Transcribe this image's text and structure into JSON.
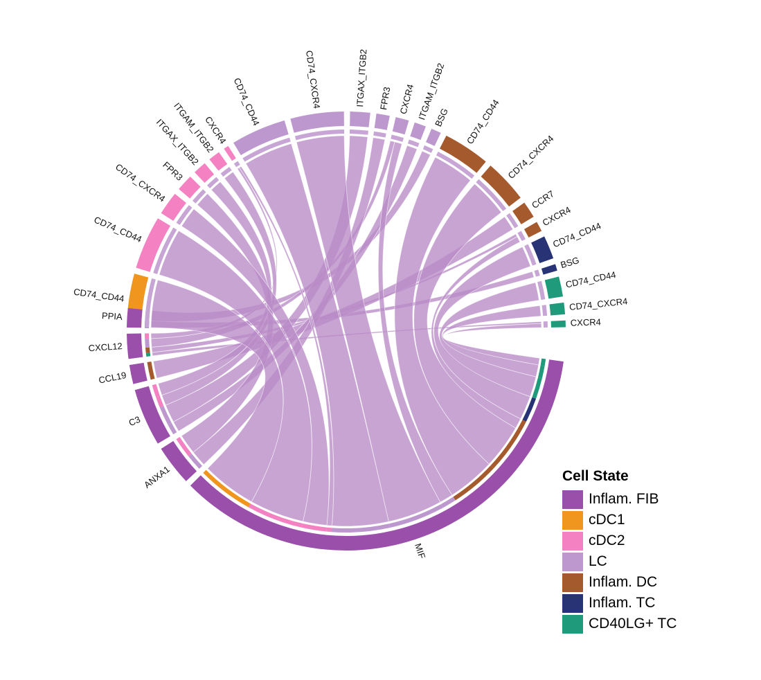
{
  "chart_data": {
    "type": "chord",
    "legend": {
      "title": "Cell State",
      "position": "right",
      "items": [
        {
          "name": "Inflam. FIB",
          "color": "#9a4fab"
        },
        {
          "name": "cDC1",
          "color": "#f0961e"
        },
        {
          "name": "cDC2",
          "color": "#f481c2"
        },
        {
          "name": "LC",
          "color": "#bd98cf"
        },
        {
          "name": "Inflam. DC",
          "color": "#a55a2e"
        },
        {
          "name": "Inflam. TC",
          "color": "#283375"
        },
        {
          "name": "CD40LG+ TC",
          "color": "#1f9a7b"
        }
      ]
    },
    "link_color": "#b98bc6",
    "ligands": [
      {
        "label": "PPIA",
        "state": "Inflam. FIB",
        "value": 1
      },
      {
        "label": "CXCL12",
        "state": "Inflam. FIB",
        "value": 1.3
      },
      {
        "label": "CCL19",
        "state": "Inflam. FIB",
        "value": 1
      },
      {
        "label": "C3",
        "state": "Inflam. FIB",
        "value": 3
      },
      {
        "label": "ANXA1",
        "state": "Inflam. FIB",
        "value": 2.1
      },
      {
        "label": "MIF",
        "state": "Inflam. FIB",
        "value": 25
      }
    ],
    "receptors": [
      {
        "label": "CD74_CD44",
        "state": "cDC1",
        "value": 3.2
      },
      {
        "label": "CD74_CD44",
        "state": "cDC2",
        "value": 3.2
      },
      {
        "label": "CD74_CXCR4",
        "state": "cDC2",
        "value": 1.4
      },
      {
        "label": "FPR3",
        "state": "cDC2",
        "value": 1
      },
      {
        "label": "ITGAX_ITGB2",
        "state": "cDC2",
        "value": 0.8
      },
      {
        "label": "ITGAM_ITGB2",
        "state": "cDC2",
        "value": 0.7
      },
      {
        "label": "CXCR4",
        "state": "cDC2",
        "value": 0.3
      },
      {
        "label": "CD74_CD44",
        "state": "LC",
        "value": 3.3
      },
      {
        "label": "CD74_CXCR4",
        "state": "LC",
        "value": 3.2
      },
      {
        "label": "ITGAX_ITGB2",
        "state": "LC",
        "value": 1.2
      },
      {
        "label": "FPR3",
        "state": "LC",
        "value": 0.8
      },
      {
        "label": "CXCR4",
        "state": "LC",
        "value": 0.8
      },
      {
        "label": "ITGAM_ITGB2",
        "state": "LC",
        "value": 0.7
      },
      {
        "label": "BSG",
        "state": "LC",
        "value": 0.6
      },
      {
        "label": "CD74_CD44",
        "state": "Inflam. DC",
        "value": 2.8
      },
      {
        "label": "CD74_CXCR4",
        "state": "Inflam. DC",
        "value": 2.6
      },
      {
        "label": "CCR7",
        "state": "Inflam. DC",
        "value": 1
      },
      {
        "label": "CXCR4",
        "state": "Inflam. DC",
        "value": 0.6
      },
      {
        "label": "CD74_CD44",
        "state": "Inflam. TC",
        "value": 1.4
      },
      {
        "label": "BSG",
        "state": "Inflam. TC",
        "value": 0.4
      },
      {
        "label": "CD74_CD44",
        "state": "CD40LG+ TC",
        "value": 1.2
      },
      {
        "label": "CD74_CXCR4",
        "state": "CD40LG+ TC",
        "value": 0.7
      },
      {
        "label": "CXCR4",
        "state": "CD40LG+ TC",
        "value": 0.4
      }
    ],
    "links": [
      {
        "from": "MIF",
        "to": 0,
        "value": 3.2
      },
      {
        "from": "MIF",
        "to": 1,
        "value": 3.2
      },
      {
        "from": "MIF",
        "to": 2,
        "value": 1.4
      },
      {
        "from": "MIF",
        "to": 6,
        "value": 0.3
      },
      {
        "from": "MIF",
        "to": 7,
        "value": 3.3
      },
      {
        "from": "MIF",
        "to": 8,
        "value": 3.2
      },
      {
        "from": "MIF",
        "to": 11,
        "value": 0.8
      },
      {
        "from": "MIF",
        "to": 14,
        "value": 2.8
      },
      {
        "from": "MIF",
        "to": 15,
        "value": 2.6
      },
      {
        "from": "MIF",
        "to": 17,
        "value": 0.6
      },
      {
        "from": "MIF",
        "to": 18,
        "value": 1.4
      },
      {
        "from": "MIF",
        "to": 20,
        "value": 1.2
      },
      {
        "from": "MIF",
        "to": 21,
        "value": 0.7
      },
      {
        "from": "MIF",
        "to": 22,
        "value": 0.4
      },
      {
        "from": "ANXA1",
        "to": 3,
        "value": 1
      },
      {
        "from": "ANXA1",
        "to": 10,
        "value": 0.8
      },
      {
        "from": "C3",
        "to": 4,
        "value": 0.8
      },
      {
        "from": "C3",
        "to": 5,
        "value": 0.7
      },
      {
        "from": "C3",
        "to": 9,
        "value": 1.2
      },
      {
        "from": "C3",
        "to": 12,
        "value": 0.7
      },
      {
        "from": "CCL19",
        "to": 16,
        "value": 1
      },
      {
        "from": "CXCL12",
        "to": 6,
        "value": 0.3
      },
      {
        "from": "CXCL12",
        "to": 11,
        "value": 0.5
      },
      {
        "from": "CXCL12",
        "to": 17,
        "value": 0.3
      },
      {
        "from": "CXCL12",
        "to": 22,
        "value": 0.2
      },
      {
        "from": "PPIA",
        "to": 13,
        "value": 0.6
      },
      {
        "from": "PPIA",
        "to": 19,
        "value": 0.4
      }
    ]
  }
}
